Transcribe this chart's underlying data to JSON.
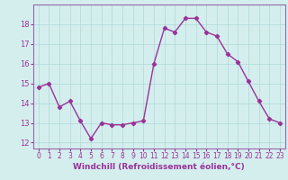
{
  "x": [
    0,
    1,
    2,
    3,
    4,
    5,
    6,
    7,
    8,
    9,
    10,
    11,
    12,
    13,
    14,
    15,
    16,
    17,
    18,
    19,
    20,
    21,
    22,
    23
  ],
  "y": [
    14.8,
    15.0,
    13.8,
    14.1,
    13.1,
    12.2,
    13.0,
    12.9,
    12.9,
    13.0,
    13.1,
    16.0,
    17.8,
    17.6,
    18.3,
    18.3,
    17.6,
    17.4,
    16.5,
    16.1,
    15.1,
    14.1,
    13.2,
    13.0
  ],
  "line_color": "#993399",
  "marker": "D",
  "marker_size": 2.2,
  "line_width": 1.0,
  "xlabel": "Windchill (Refroidissement éolien,°C)",
  "xlabel_fontsize": 6.5,
  "ylim": [
    11.7,
    19.0
  ],
  "xlim": [
    -0.5,
    23.5
  ],
  "yticks": [
    12,
    13,
    14,
    15,
    16,
    17,
    18
  ],
  "xticks": [
    0,
    1,
    2,
    3,
    4,
    5,
    6,
    7,
    8,
    9,
    10,
    11,
    12,
    13,
    14,
    15,
    16,
    17,
    18,
    19,
    20,
    21,
    22,
    23
  ],
  "tick_fontsize": 6.0,
  "background_color": "#d4eeee",
  "grid_color": "#b0d8d8",
  "grid_linewidth": 0.5,
  "spine_color": "#9966aa"
}
